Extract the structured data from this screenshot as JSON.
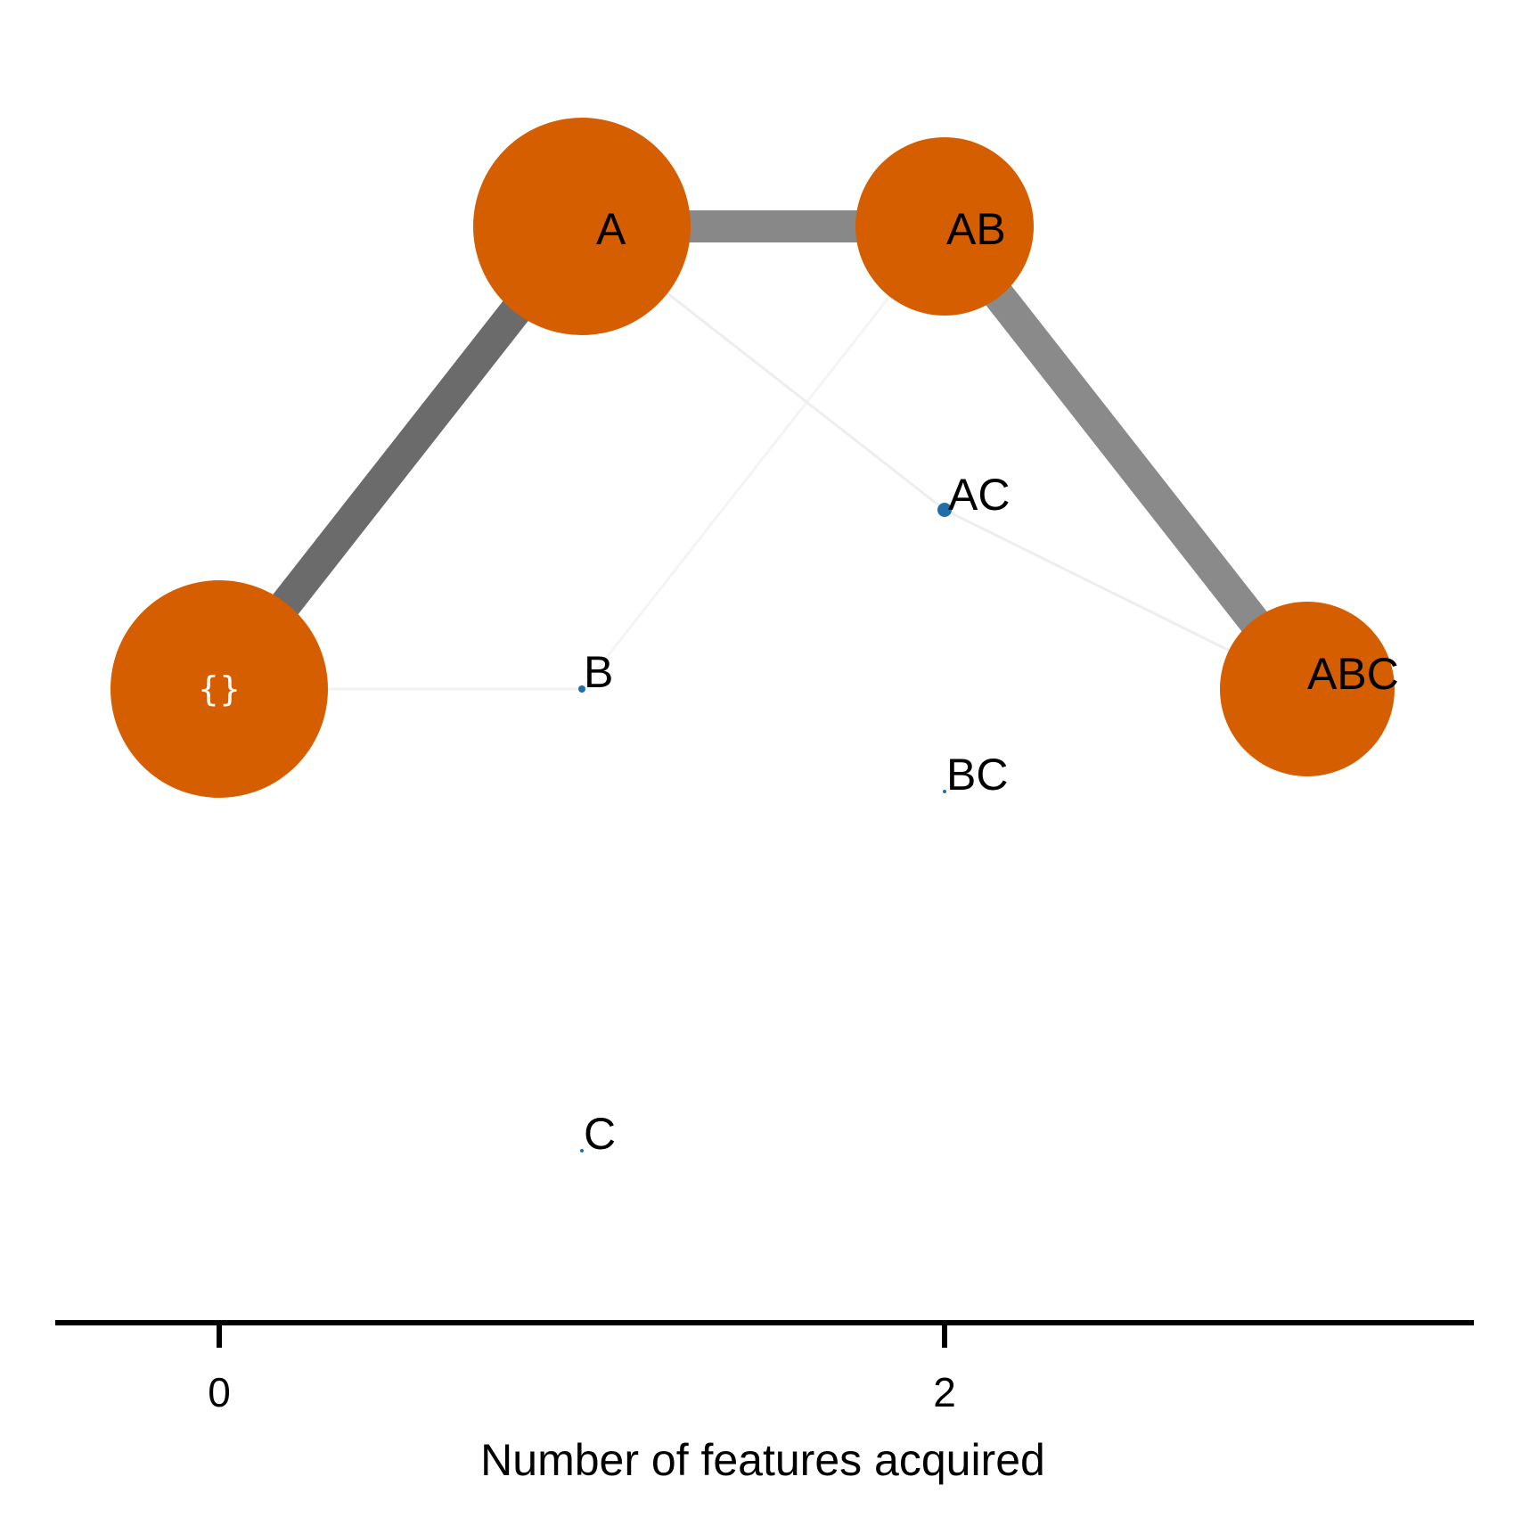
{
  "colors": {
    "highlight_node": "#d55e00",
    "minor_node": "#1f6fa8",
    "background": "#ffffff",
    "axis": "#000000"
  },
  "nodes": [
    {
      "id": "empty",
      "label": "{}",
      "features": 0,
      "highlighted": true
    },
    {
      "id": "A",
      "label": "A",
      "features": 1,
      "highlighted": true
    },
    {
      "id": "B",
      "label": "B",
      "features": 1,
      "highlighted": false
    },
    {
      "id": "C",
      "label": "C",
      "features": 1,
      "highlighted": false
    },
    {
      "id": "AB",
      "label": "AB",
      "features": 2,
      "highlighted": true
    },
    {
      "id": "AC",
      "label": "AC",
      "features": 2,
      "highlighted": false
    },
    {
      "id": "BC",
      "label": "BC",
      "features": 2,
      "highlighted": false
    },
    {
      "id": "ABC",
      "label": "ABC",
      "features": 3,
      "highlighted": true
    }
  ],
  "edges": [
    {
      "from": "empty",
      "to": "A",
      "strength": "strong",
      "color": "#6b6b6b"
    },
    {
      "from": "A",
      "to": "AB",
      "strength": "strong",
      "color": "#888888"
    },
    {
      "from": "AB",
      "to": "ABC",
      "strength": "strong",
      "color": "#8a8a8a"
    },
    {
      "from": "empty",
      "to": "B",
      "strength": "faint",
      "color": "#f2f2f2"
    },
    {
      "from": "B",
      "to": "AB",
      "strength": "faint",
      "color": "#f4f4f4"
    },
    {
      "from": "A",
      "to": "AC",
      "strength": "faint",
      "color": "#eeeeee"
    },
    {
      "from": "AC",
      "to": "ABC",
      "strength": "faint",
      "color": "#eeeeee"
    }
  ],
  "axis": {
    "title": "Number of features acquired",
    "ticks": [
      {
        "value": 0,
        "label": "0"
      },
      {
        "value": 2,
        "label": "2"
      }
    ]
  }
}
